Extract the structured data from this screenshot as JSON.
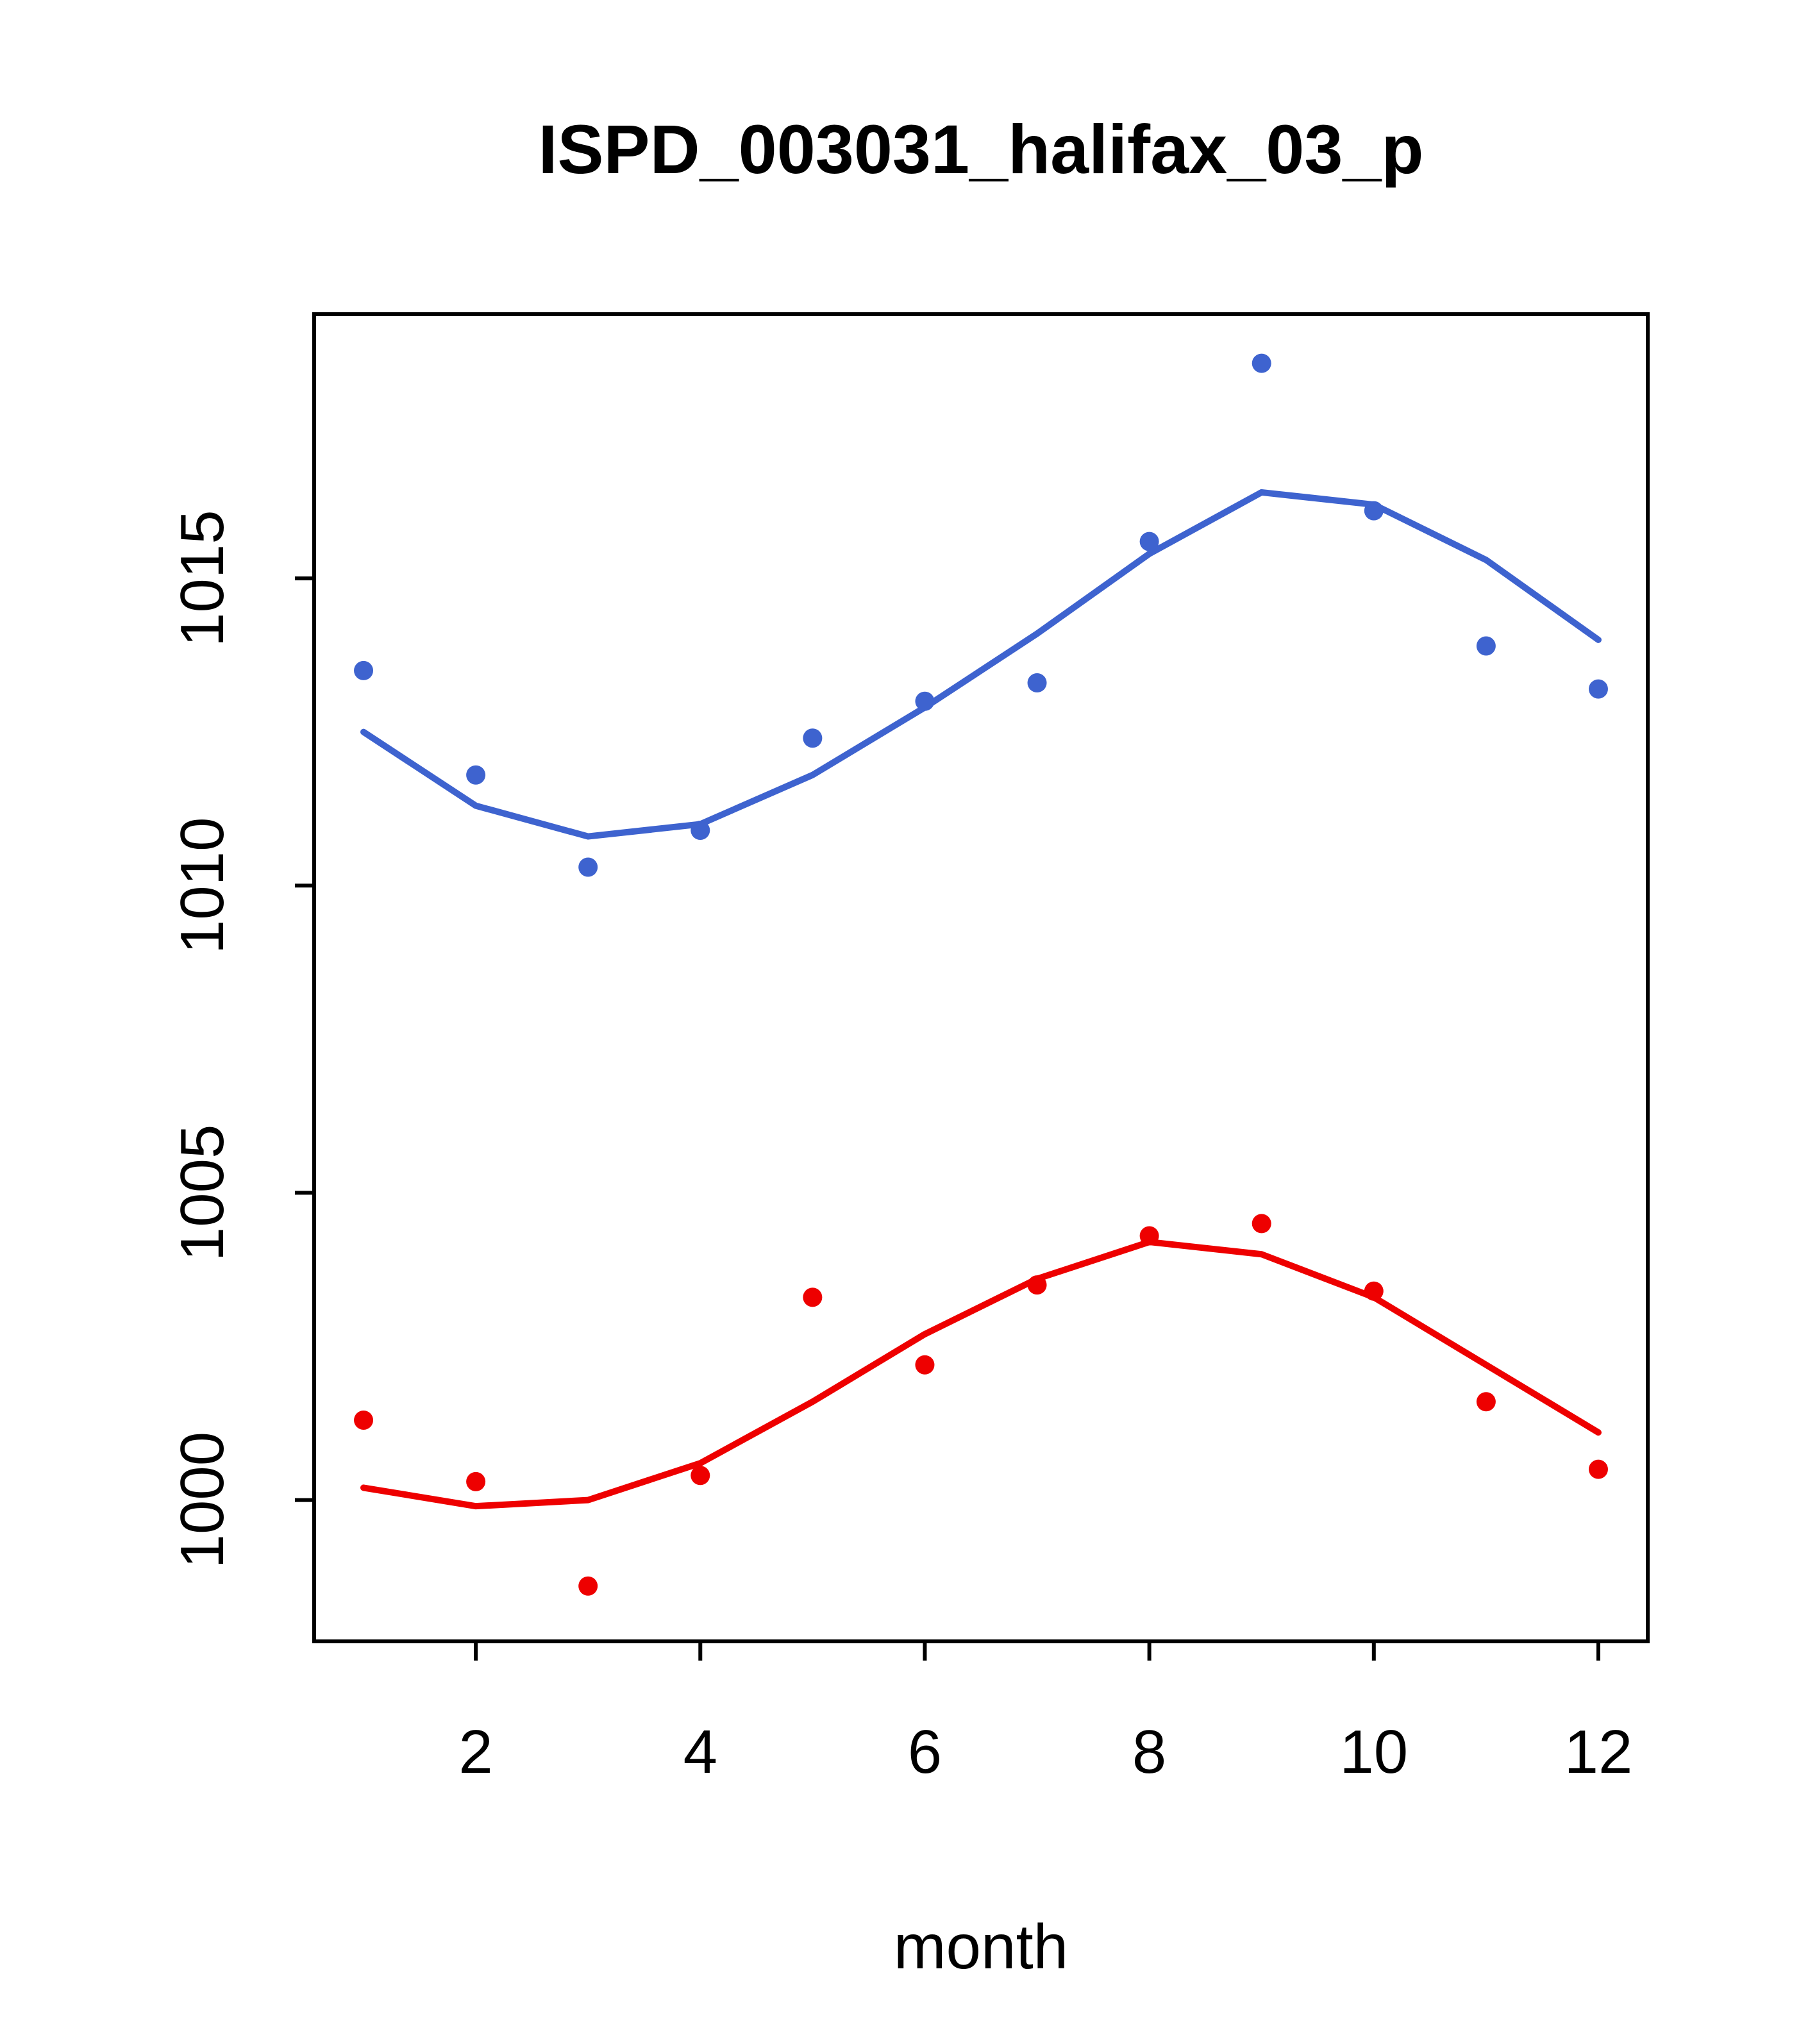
{
  "chart_data": {
    "type": "scatter",
    "title": "ISPD_003031_halifax_03_p",
    "xlabel": "month",
    "ylabel": "",
    "grid": false,
    "legend": "none",
    "x": [
      1,
      2,
      3,
      4,
      5,
      6,
      7,
      8,
      9,
      10,
      11,
      12
    ],
    "xlim": [
      0.56,
      12.44
    ],
    "ylim": [
      997.7,
      1019.3
    ],
    "x_ticks": [
      2,
      4,
      6,
      8,
      10,
      12
    ],
    "y_ticks": [
      1000,
      1005,
      1010,
      1015
    ],
    "axis_color": "#000000",
    "series": [
      {
        "name": "blue-series",
        "color": "#3E63CF",
        "points": [
          1013.5,
          1011.8,
          1010.3,
          1010.9,
          1012.4,
          1013.0,
          1013.3,
          1015.6,
          1018.5,
          1016.1,
          1013.9,
          1013.2
        ],
        "smooth_line": [
          1012.5,
          1011.3,
          1010.8,
          1011.0,
          1011.8,
          1012.9,
          1014.1,
          1015.4,
          1016.4,
          1016.2,
          1015.3,
          1014.0
        ]
      },
      {
        "name": "red-series",
        "color": "#EE0000",
        "points": [
          1001.3,
          1000.3,
          998.6,
          1000.4,
          1003.3,
          1002.2,
          1003.5,
          1004.3,
          1004.5,
          1003.4,
          1001.6,
          1000.5
        ],
        "smooth_line": [
          1000.2,
          999.9,
          1000.0,
          1000.6,
          1001.6,
          1002.7,
          1003.6,
          1004.2,
          1004.0,
          1003.3,
          1002.2,
          1001.1
        ]
      }
    ]
  }
}
